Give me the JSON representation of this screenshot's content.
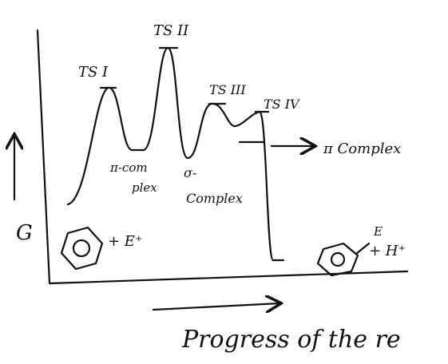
{
  "diagram": {
    "axis_label": "G",
    "x_axis_label": "Progress of the re",
    "transition_states": [
      "TS I",
      "TS II",
      "TS III",
      "TS IV"
    ],
    "intermediates": {
      "pi_complex_1": [
        "π-com",
        "plex"
      ],
      "sigma_complex": [
        "σ-",
        "Complex"
      ],
      "pi_complex_2": "π Complex"
    },
    "reactants": "+ E⁺",
    "products": {
      "substituent": "E",
      "byproduct": "+ H⁺"
    }
  }
}
